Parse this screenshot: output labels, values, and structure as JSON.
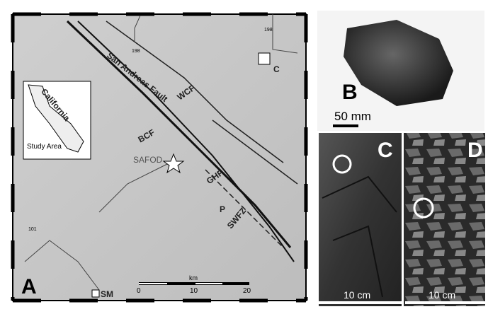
{
  "map": {
    "panel_label": "A",
    "fault_name": "San Andreas Fault",
    "faults": [
      "WCF",
      "BCF",
      "GHF",
      "SWFZ"
    ],
    "site": "SAFOD",
    "inset": {
      "title": "California",
      "study": "Study Area"
    },
    "places": [
      "C",
      "SM",
      "P"
    ],
    "roads": [
      "198",
      "198",
      "101"
    ],
    "scale": {
      "unit": "km",
      "ticks": [
        0,
        10,
        20
      ]
    }
  },
  "photo_b": {
    "label": "B",
    "scale": "50 mm"
  },
  "photo_c": {
    "label": "C",
    "scale": "10 cm"
  },
  "photo_d": {
    "label": "D",
    "scale": "10 cm"
  }
}
